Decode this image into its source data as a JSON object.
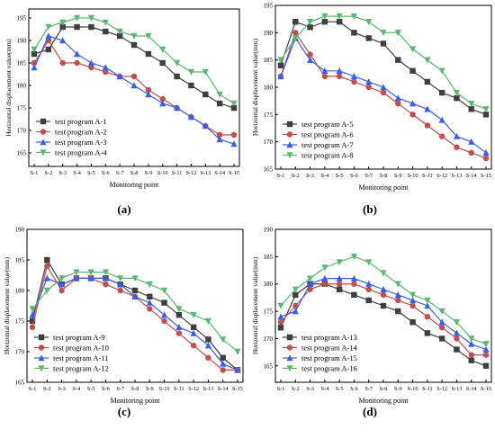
{
  "colors": {
    "series": [
      "#3f3f3f",
      "#c0504d",
      "#3b5ee8",
      "#5ab872"
    ]
  },
  "chart_data": [
    {
      "type": "line",
      "panel_label": "(a)",
      "xlabel": "Monitoring point",
      "ylabel": "Horizontal displacement value(mm)",
      "categories": [
        "S-1",
        "S-2",
        "S-3",
        "S-4",
        "S-5",
        "S-6",
        "S-7",
        "S-8",
        "S-9",
        "S-10",
        "S-11",
        "S-12",
        "S-13",
        "S-14",
        "S-15"
      ],
      "ylim": [
        162,
        197
      ],
      "yticks": [
        165,
        170,
        175,
        180,
        185,
        190,
        195
      ],
      "legend": "bottom-left",
      "series": [
        {
          "name": "test program A-1",
          "marker": "square",
          "values": [
            187,
            188,
            193,
            193,
            193,
            192,
            191,
            189,
            187,
            185,
            182,
            180,
            178,
            176,
            175
          ]
        },
        {
          "name": "test program A-2",
          "marker": "circle",
          "values": [
            185,
            190,
            185,
            185,
            184,
            183,
            182,
            182,
            179,
            177,
            175,
            173,
            171,
            169,
            169
          ]
        },
        {
          "name": "test program A-3",
          "marker": "triangle-up",
          "values": [
            184,
            191,
            190,
            187,
            185,
            184,
            182,
            180,
            178,
            176,
            175,
            173,
            171,
            168,
            167
          ]
        },
        {
          "name": "test program A-4",
          "marker": "triangle-down",
          "values": [
            188,
            193,
            194,
            195,
            195,
            194,
            192,
            191,
            191,
            188,
            185,
            183,
            183,
            178,
            176
          ]
        }
      ]
    },
    {
      "type": "line",
      "panel_label": "(b)",
      "xlabel": "Monitoring point",
      "ylabel": "Horizontal displacement value(mm)",
      "categories": [
        "S-1",
        "S-2",
        "S-3",
        "S-4",
        "S-5",
        "S-6",
        "S-7",
        "S-8",
        "S-9",
        "S-10",
        "S-11",
        "S-12",
        "S-13",
        "S-14",
        "S-15"
      ],
      "ylim": [
        165,
        195
      ],
      "yticks": [
        165,
        170,
        175,
        180,
        185,
        190,
        195
      ],
      "legend": "bottom-left",
      "series": [
        {
          "name": "test program A-5",
          "marker": "square",
          "values": [
            184,
            192,
            191,
            192,
            192,
            190,
            189,
            188,
            185,
            183,
            181,
            179,
            178,
            176,
            175
          ]
        },
        {
          "name": "test program A-6",
          "marker": "circle",
          "values": [
            182,
            190,
            186,
            182,
            182,
            181,
            180,
            179,
            177,
            175,
            173,
            171,
            169,
            168,
            167
          ]
        },
        {
          "name": "test program A-7",
          "marker": "triangle-up",
          "values": [
            182,
            189,
            185,
            183,
            183,
            182,
            181,
            180,
            178,
            177,
            176,
            174,
            171,
            170,
            168
          ]
        },
        {
          "name": "test program A-8",
          "marker": "triangle-down",
          "values": [
            185,
            189,
            192,
            193,
            193,
            193,
            192,
            190,
            190,
            187,
            185,
            183,
            179,
            177,
            176
          ]
        }
      ]
    },
    {
      "type": "line",
      "panel_label": "(c)",
      "xlabel": "Monitoring point",
      "ylabel": "Horizontal displacement value(mm)",
      "categories": [
        "S-1",
        "S-2",
        "S-3",
        "S-4",
        "S-5",
        "S-6",
        "S-7",
        "S-8",
        "S-9",
        "S-10",
        "S-11",
        "S-12",
        "S-13",
        "S-14",
        "S-15"
      ],
      "ylim": [
        165,
        190
      ],
      "yticks": [
        165,
        170,
        175,
        180,
        185,
        190
      ],
      "legend": "bottom-left",
      "series": [
        {
          "name": "test program A-9",
          "marker": "square",
          "values": [
            175,
            185,
            181,
            182,
            182,
            182,
            181,
            180,
            179,
            178,
            176,
            174,
            172,
            169,
            167
          ]
        },
        {
          "name": "test program A-10",
          "marker": "circle",
          "values": [
            174,
            184,
            180,
            182,
            182,
            181,
            180,
            179,
            177,
            175,
            173,
            171,
            169,
            167,
            167
          ]
        },
        {
          "name": "test program A-11",
          "marker": "triangle-up",
          "values": [
            176,
            182,
            181,
            182,
            182,
            182,
            181,
            179,
            178,
            176,
            174,
            173,
            171,
            168,
            167
          ]
        },
        {
          "name": "test program A-12",
          "marker": "triangle-down",
          "values": [
            177,
            180,
            182,
            183,
            183,
            183,
            182,
            182,
            181,
            180,
            177,
            176,
            175,
            172,
            170
          ]
        }
      ]
    },
    {
      "type": "line",
      "panel_label": "(d)",
      "xlabel": "Monitoring point",
      "ylabel": "Horizontal displacement value(mm)",
      "categories": [
        "S-1",
        "S-2",
        "S-3",
        "S-4",
        "S-5",
        "S-6",
        "S-7",
        "S-8",
        "S-9",
        "S-10",
        "S-11",
        "S-12",
        "S-13",
        "S-14",
        "S-15"
      ],
      "ylim": [
        162,
        190
      ],
      "yticks": [
        165,
        170,
        175,
        180,
        185,
        190
      ],
      "legend": "bottom-left",
      "series": [
        {
          "name": "test program A-13",
          "marker": "square",
          "values": [
            172,
            178,
            180,
            180,
            179,
            178,
            177,
            176,
            175,
            173,
            171,
            170,
            168,
            166,
            165
          ]
        },
        {
          "name": "test program A-14",
          "marker": "circle",
          "values": [
            173,
            176,
            179,
            180,
            180,
            180,
            179,
            178,
            177,
            176,
            174,
            172,
            170,
            167,
            167
          ]
        },
        {
          "name": "test program A-15",
          "marker": "triangle-up",
          "values": [
            174,
            175,
            180,
            181,
            181,
            181,
            180,
            179,
            178,
            177,
            176,
            173,
            171,
            169,
            168
          ]
        },
        {
          "name": "test program A-16",
          "marker": "triangle-down",
          "values": [
            176,
            179,
            181,
            183,
            184,
            185,
            184,
            182,
            180,
            178,
            177,
            175,
            173,
            170,
            169
          ]
        }
      ]
    }
  ]
}
